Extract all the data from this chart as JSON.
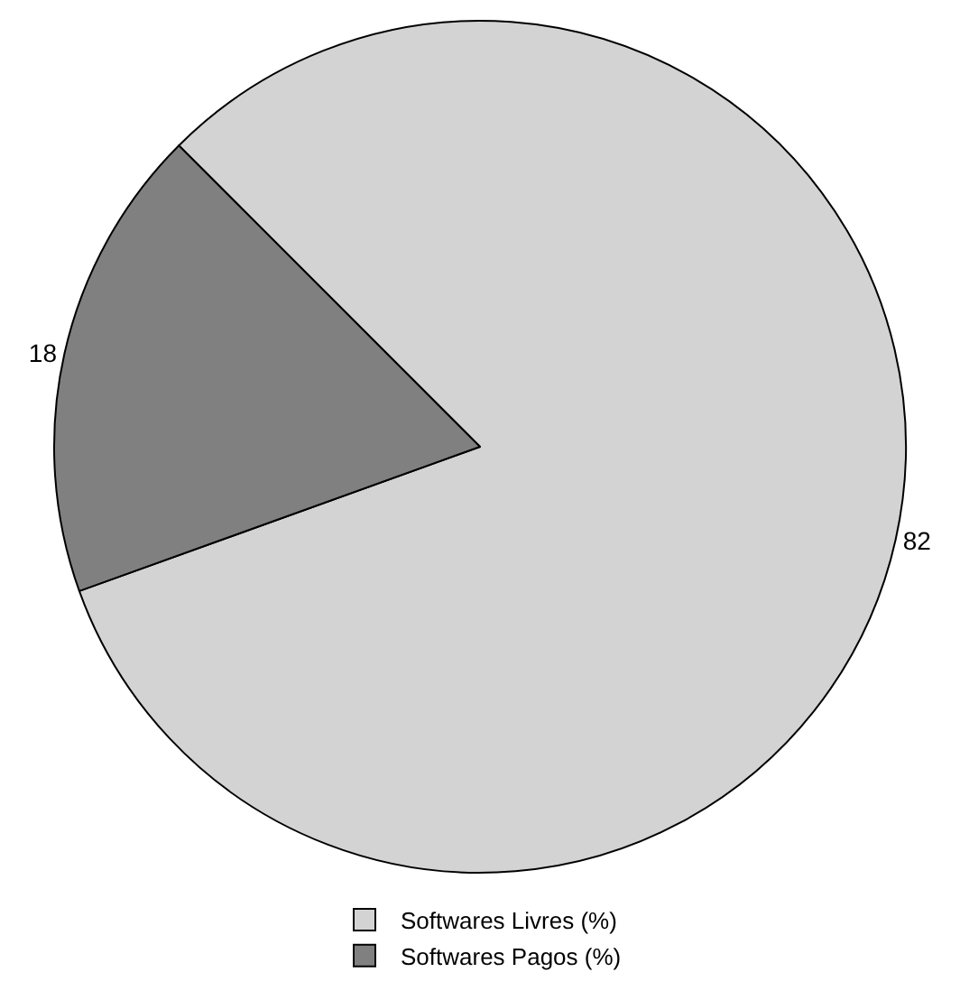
{
  "chart_data": {
    "type": "pie",
    "categories": [
      "Softwares Livres (%)",
      "Softwares Pagos (%)"
    ],
    "values": [
      82,
      18
    ],
    "colors": [
      "#d3d3d3",
      "#808080"
    ],
    "data_labels": true,
    "legend": "bottom"
  }
}
